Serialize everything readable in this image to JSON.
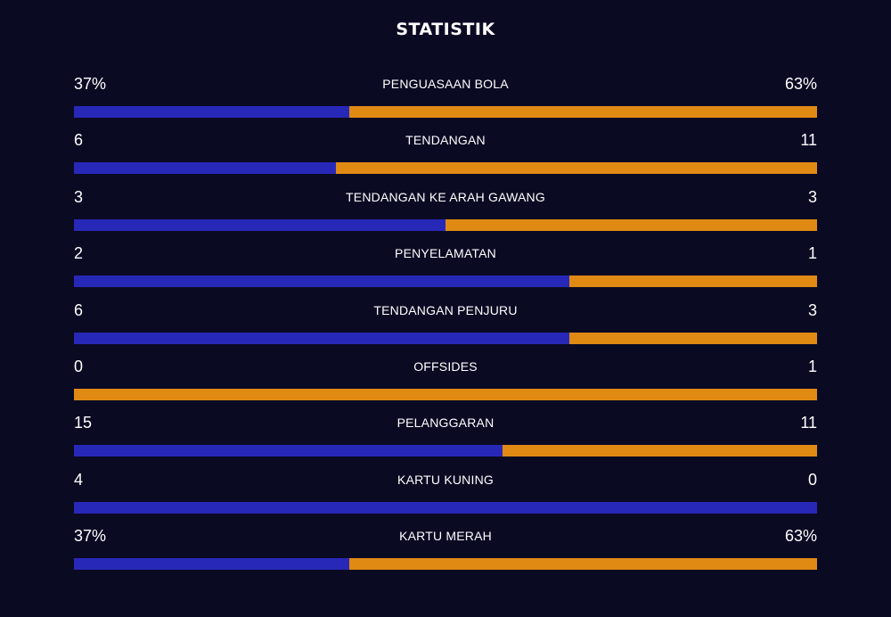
{
  "title": "STATISTIK",
  "colors": {
    "background": "#0a0a23",
    "home_bar": "#2828b8",
    "away_bar": "#e08a14",
    "text": "#ffffff"
  },
  "stats": [
    {
      "label": "PENGUASAAN BOLA",
      "home": "37%",
      "away": "63%",
      "home_share": 0.37
    },
    {
      "label": "TENDANGAN",
      "home": "6",
      "away": "11",
      "home_share": 0.353
    },
    {
      "label": "TENDANGAN KE ARAH GAWANG",
      "home": "3",
      "away": "3",
      "home_share": 0.5
    },
    {
      "label": "PENYELAMATAN",
      "home": "2",
      "away": "1",
      "home_share": 0.667
    },
    {
      "label": "TENDANGAN PENJURU",
      "home": "6",
      "away": "3",
      "home_share": 0.667
    },
    {
      "label": "OFFSIDES",
      "home": "0",
      "away": "1",
      "home_share": 0.0
    },
    {
      "label": "PELANGGARAN",
      "home": "15",
      "away": "11",
      "home_share": 0.577
    },
    {
      "label": "KARTU KUNING",
      "home": "4",
      "away": "0",
      "home_share": 1.0
    },
    {
      "label": "KARTU MERAH",
      "home": "37%",
      "away": "63%",
      "home_share": 0.37
    }
  ]
}
